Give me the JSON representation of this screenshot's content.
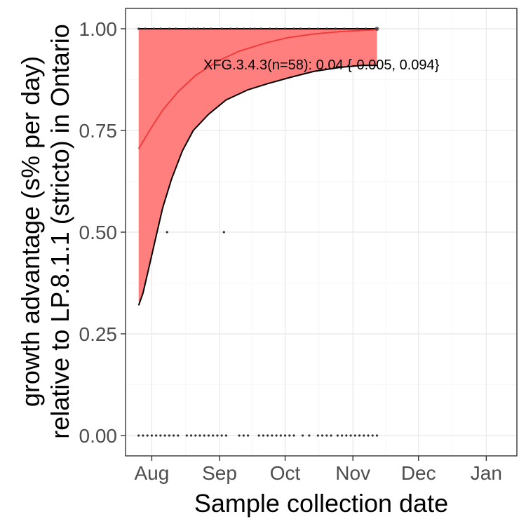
{
  "chart_data": {
    "type": "line",
    "title": "",
    "xlabel": "Sample collection date",
    "ylabel_lines": [
      "growth advantage (s% per day)",
      "relative to LP.8.1.1 (stricto) in Ontario"
    ],
    "x_tick_labels": [
      "Aug",
      "Sep",
      "Oct",
      "Nov",
      "Dec",
      "Jan"
    ],
    "x_ticks": [
      "2025-08-01",
      "2025-09-01",
      "2025-10-01",
      "2025-11-01",
      "2025-12-01",
      "2026-01-01"
    ],
    "xlim": [
      "2025-07-20",
      "2026-01-15"
    ],
    "ylim": [
      -0.05,
      1.05
    ],
    "y_ticks": [
      0,
      0.25,
      0.5,
      0.75,
      1
    ],
    "y_tick_labels": [
      "0.00",
      "0.25",
      "0.50",
      "0.75",
      "1.00"
    ],
    "grid": true,
    "annotation": "XFG.3.4.3(n=58): 0.04 {-0.005, 0.094}",
    "colors": {
      "ribbon": "#ff7f7f",
      "fit_line": "#f03c3c",
      "bound_line": "#000000",
      "points": "#333333"
    },
    "series": [
      {
        "label": "fit",
        "points": [
          [
            "2025-07-26",
            0.705
          ],
          [
            "2025-07-31",
            0.75
          ],
          [
            "2025-08-06",
            0.8
          ],
          [
            "2025-08-13",
            0.845
          ],
          [
            "2025-08-21",
            0.885
          ],
          [
            "2025-08-31",
            0.92
          ],
          [
            "2025-09-10",
            0.945
          ],
          [
            "2025-09-22",
            0.965
          ],
          [
            "2025-10-02",
            0.978
          ],
          [
            "2025-10-14",
            0.987
          ],
          [
            "2025-10-26",
            0.993
          ],
          [
            "2025-11-12",
            0.998
          ]
        ]
      },
      {
        "label": "upper",
        "points": [
          [
            "2025-07-26",
            1.0
          ],
          [
            "2025-11-12",
            1.0
          ]
        ]
      },
      {
        "label": "lower",
        "points": [
          [
            "2025-07-26",
            0.32
          ],
          [
            "2025-07-28",
            0.35
          ],
          [
            "2025-07-31",
            0.42
          ],
          [
            "2025-08-03",
            0.49
          ],
          [
            "2025-08-06",
            0.56
          ],
          [
            "2025-08-10",
            0.63
          ],
          [
            "2025-08-15",
            0.7
          ],
          [
            "2025-08-20",
            0.75
          ],
          [
            "2025-08-27",
            0.79
          ],
          [
            "2025-09-04",
            0.825
          ],
          [
            "2025-09-14",
            0.85
          ],
          [
            "2025-09-23",
            0.865
          ],
          [
            "2025-10-03",
            0.88
          ],
          [
            "2025-10-14",
            0.895
          ],
          [
            "2025-10-26",
            0.905
          ],
          [
            "2025-11-05",
            0.91
          ],
          [
            "2025-11-12",
            0.91
          ]
        ]
      }
    ],
    "observations": [
      [
        "2025-07-26",
        1
      ],
      [
        "2025-07-29",
        1
      ],
      [
        "2025-08-02",
        1
      ],
      [
        "2025-08-05",
        1
      ],
      [
        "2025-08-09",
        1
      ],
      [
        "2025-08-12",
        1
      ],
      [
        "2025-08-18",
        1
      ],
      [
        "2025-08-20",
        1
      ],
      [
        "2025-08-22",
        1
      ],
      [
        "2025-08-25",
        1
      ],
      [
        "2025-08-28",
        1
      ],
      [
        "2025-09-02",
        1
      ],
      [
        "2025-09-06",
        1
      ],
      [
        "2025-09-09",
        1
      ],
      [
        "2025-09-12",
        1
      ],
      [
        "2025-09-15",
        1
      ],
      [
        "2025-09-17",
        1
      ],
      [
        "2025-09-20",
        1
      ],
      [
        "2025-09-24",
        1
      ],
      [
        "2025-09-27",
        1
      ],
      [
        "2025-10-01",
        1
      ],
      [
        "2025-10-05",
        1
      ],
      [
        "2025-10-08",
        1
      ],
      [
        "2025-10-12",
        1
      ],
      [
        "2025-10-16",
        1
      ],
      [
        "2025-10-20",
        1
      ],
      [
        "2025-10-24",
        1
      ],
      [
        "2025-10-28",
        1
      ],
      [
        "2025-11-03",
        1
      ],
      [
        "2025-11-07",
        1
      ],
      [
        "2025-11-12",
        1
      ],
      [
        "2025-08-08",
        0.5
      ],
      [
        "2025-09-03",
        0.5
      ],
      [
        "2025-07-26",
        0
      ],
      [
        "2025-07-28",
        0
      ],
      [
        "2025-07-30",
        0
      ],
      [
        "2025-08-01",
        0
      ],
      [
        "2025-08-03",
        0
      ],
      [
        "2025-08-05",
        0
      ],
      [
        "2025-08-07",
        0
      ],
      [
        "2025-08-09",
        0
      ],
      [
        "2025-08-11",
        0
      ],
      [
        "2025-08-13",
        0
      ],
      [
        "2025-08-17",
        0
      ],
      [
        "2025-08-19",
        0
      ],
      [
        "2025-08-21",
        0
      ],
      [
        "2025-08-23",
        0
      ],
      [
        "2025-08-25",
        0
      ],
      [
        "2025-08-27",
        0
      ],
      [
        "2025-08-29",
        0
      ],
      [
        "2025-08-31",
        0
      ],
      [
        "2025-09-02",
        0
      ],
      [
        "2025-09-04",
        0
      ],
      [
        "2025-09-10",
        0
      ],
      [
        "2025-09-12",
        0
      ],
      [
        "2025-09-14",
        0
      ],
      [
        "2025-09-19",
        0
      ],
      [
        "2025-09-21",
        0
      ],
      [
        "2025-09-23",
        0
      ],
      [
        "2025-09-25",
        0
      ],
      [
        "2025-09-27",
        0
      ],
      [
        "2025-09-29",
        0
      ],
      [
        "2025-10-01",
        0
      ],
      [
        "2025-10-03",
        0
      ],
      [
        "2025-10-05",
        0
      ],
      [
        "2025-10-09",
        0
      ],
      [
        "2025-10-12",
        0
      ],
      [
        "2025-10-16",
        0
      ],
      [
        "2025-10-18",
        0
      ],
      [
        "2025-10-20",
        0
      ],
      [
        "2025-10-22",
        0
      ],
      [
        "2025-10-25",
        0
      ],
      [
        "2025-10-27",
        0
      ],
      [
        "2025-10-29",
        0
      ],
      [
        "2025-10-31",
        0
      ],
      [
        "2025-11-02",
        0
      ],
      [
        "2025-11-04",
        0
      ],
      [
        "2025-11-06",
        0
      ],
      [
        "2025-11-08",
        0
      ],
      [
        "2025-11-10",
        0
      ],
      [
        "2025-11-12",
        0
      ]
    ]
  }
}
